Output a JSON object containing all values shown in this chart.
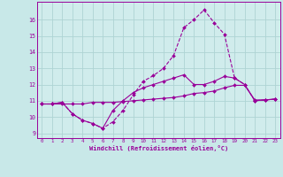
{
  "background_color": "#c8e8e8",
  "line_color": "#990099",
  "plot_bg_color": "#d0ecec",
  "grid_color": "#aed4d4",
  "xlabel": "Windchill (Refroidissement éolien,°C)",
  "xlim": [
    -0.5,
    23.5
  ],
  "ylim": [
    8.7,
    17.1
  ],
  "yticks": [
    9,
    10,
    11,
    12,
    13,
    14,
    15,
    16
  ],
  "xticks": [
    0,
    1,
    2,
    3,
    4,
    5,
    6,
    7,
    8,
    9,
    10,
    11,
    12,
    13,
    14,
    15,
    16,
    17,
    18,
    19,
    20,
    21,
    22,
    23
  ],
  "series": [
    {
      "x": [
        0,
        1,
        2,
        3,
        4,
        5,
        6,
        7,
        8,
        9,
        10,
        11,
        12,
        13,
        14,
        15,
        16,
        17,
        18,
        19,
        20,
        21,
        22,
        23
      ],
      "y": [
        10.8,
        10.8,
        10.9,
        10.2,
        9.8,
        9.6,
        9.3,
        9.7,
        10.4,
        11.35,
        12.2,
        12.55,
        13.0,
        13.8,
        15.5,
        16.0,
        16.6,
        15.8,
        15.1,
        12.4,
        12.0,
        11.0,
        11.05,
        11.1
      ]
    },
    {
      "x": [
        0,
        1,
        2,
        3,
        4,
        5,
        6,
        7,
        8,
        9,
        10,
        11,
        12,
        13,
        14,
        15,
        16,
        17,
        18,
        19,
        20,
        21,
        22,
        23
      ],
      "y": [
        10.8,
        10.8,
        10.9,
        10.2,
        9.8,
        9.6,
        9.3,
        10.4,
        11.0,
        11.5,
        11.8,
        12.0,
        12.2,
        12.4,
        12.6,
        12.0,
        12.0,
        12.2,
        12.5,
        12.4,
        12.0,
        11.0,
        11.05,
        11.1
      ]
    },
    {
      "x": [
        0,
        1,
        2,
        3,
        4,
        5,
        6,
        7,
        8,
        9,
        10,
        11,
        12,
        13,
        14,
        15,
        16,
        17,
        18,
        19,
        20,
        21,
        22,
        23
      ],
      "y": [
        10.8,
        10.8,
        10.8,
        10.8,
        10.8,
        10.9,
        10.9,
        10.9,
        10.95,
        11.0,
        11.05,
        11.1,
        11.15,
        11.2,
        11.3,
        11.45,
        11.5,
        11.6,
        11.8,
        11.95,
        11.95,
        11.05,
        11.05,
        11.1
      ]
    }
  ]
}
